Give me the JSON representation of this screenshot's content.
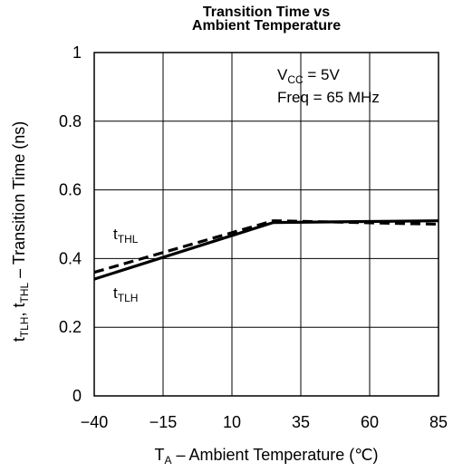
{
  "chart_data": {
    "type": "line",
    "title_lines": [
      "Transition Time vs",
      "Ambient Temperature"
    ],
    "xlabel": {
      "main": "T",
      "sub": "A",
      "rest": " – Ambient Temperature (℃)"
    },
    "ylabel_parts": [
      {
        "t": "t"
      },
      {
        "t": "TLH",
        "sub": true
      },
      {
        "t": ", t"
      },
      {
        "t": "THL",
        "sub": true
      },
      {
        "t": " – Transition Time (ns)"
      }
    ],
    "xticks": [
      -40,
      -15,
      10,
      35,
      60,
      85
    ],
    "xtick_labels": [
      "−40",
      "−15",
      "10",
      "35",
      "60",
      "85"
    ],
    "yticks": [
      0,
      0.2,
      0.4,
      0.6,
      0.8,
      1
    ],
    "ytick_labels": [
      "0",
      "0.2",
      "0.4",
      "0.6",
      "0.8",
      "1"
    ],
    "xlim": [
      -40,
      85
    ],
    "ylim": [
      0,
      1
    ],
    "grid": true,
    "series": [
      {
        "name": "tTLH",
        "label": {
          "main": "t",
          "sub": "TLH"
        },
        "style": "solid",
        "x": [
          -40,
          25,
          85
        ],
        "y": [
          0.34,
          0.505,
          0.51
        ]
      },
      {
        "name": "tTHL",
        "label": {
          "main": "t",
          "sub": "THL"
        },
        "style": "dashed",
        "x": [
          -40,
          25,
          85
        ],
        "y": [
          0.36,
          0.51,
          0.5
        ]
      }
    ],
    "annotation": {
      "vcc": {
        "main": "V",
        "sub": "CC",
        "rest": " = 5V"
      },
      "freq": "Freq = 65 MHz"
    },
    "colors": {
      "line": "#000000",
      "grid": "#000000"
    }
  }
}
